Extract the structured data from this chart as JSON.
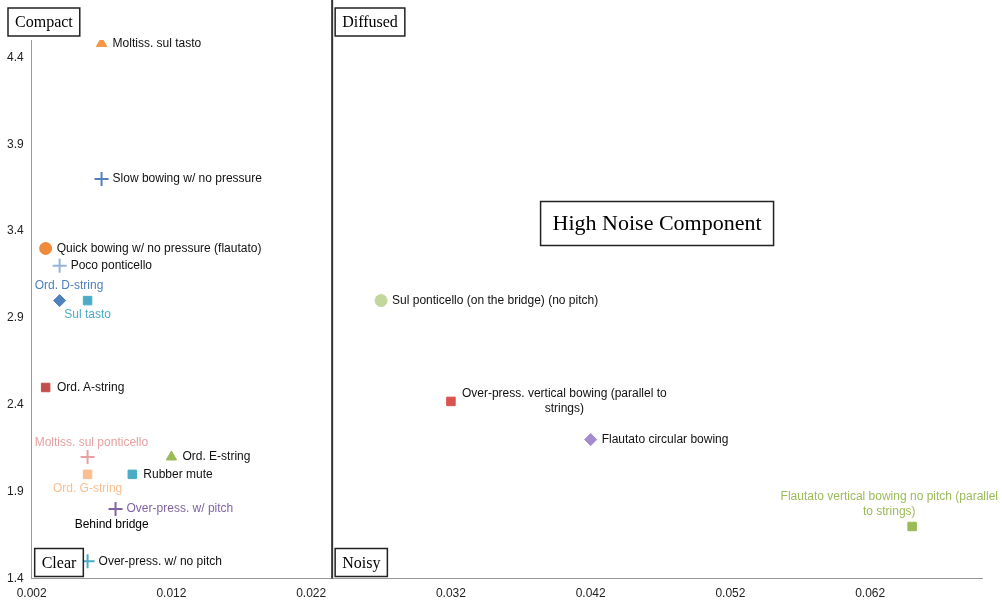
{
  "chart_data": {
    "type": "scatter",
    "xlim": [
      0.002,
      0.07
    ],
    "xticks": [
      0.002,
      0.012,
      0.022,
      0.032,
      0.042,
      0.052,
      0.062
    ],
    "ylim": [
      1.4,
      4.5
    ],
    "yticks": [
      1.4,
      1.9,
      2.4,
      2.9,
      3.4,
      3.9,
      4.4
    ],
    "grid": false,
    "legend": false,
    "ref_lines": [
      {
        "axis": "x",
        "value": 0.0235,
        "color": "#333333"
      }
    ],
    "annotations": [
      "Compact",
      "Diffused",
      "Clear",
      "Noisy",
      "High Noise Component",
      "Behind bridge"
    ],
    "series": [
      {
        "name": "Moltiss. sul tasto",
        "color": "#f79646",
        "marker": "triangle",
        "x": [
          0.007
        ],
        "values": [
          4.48
        ]
      },
      {
        "name": "Slow bowing w/ no pressure",
        "color": "#4f81bd",
        "marker": "cross",
        "x": [
          0.007
        ],
        "values": [
          3.7
        ]
      },
      {
        "name": "Quick bowing w/ no pressure (flautato)",
        "color": "#f08a3c",
        "marker": "circle",
        "x": [
          0.003
        ],
        "values": [
          3.3
        ]
      },
      {
        "name": "Poco ponticello",
        "color": "#95b3d7",
        "marker": "cross",
        "x": [
          0.004
        ],
        "values": [
          3.2
        ]
      },
      {
        "name": "Ord. D-string",
        "color": "#4f81bd",
        "marker": "diamond",
        "x": [
          0.004
        ],
        "values": [
          3.0
        ]
      },
      {
        "name": "Sul tasto",
        "color": "#4bacc6",
        "marker": "square",
        "x": [
          0.006
        ],
        "values": [
          3.0
        ]
      },
      {
        "name": "Ord. A-string",
        "color": "#c0504d",
        "marker": "square",
        "x": [
          0.003
        ],
        "values": [
          2.5
        ]
      },
      {
        "name": "Moltiss. sul ponticello",
        "color": "#e6a0a0",
        "marker": "cross",
        "x": [
          0.006
        ],
        "values": [
          2.1
        ]
      },
      {
        "name": "Ord. E-string",
        "color": "#9bbb59",
        "marker": "triangle",
        "x": [
          0.012
        ],
        "values": [
          2.1
        ]
      },
      {
        "name": "Ord. G-string",
        "color": "#fabf8f",
        "marker": "square",
        "x": [
          0.006
        ],
        "values": [
          2.0
        ]
      },
      {
        "name": "Rubber mute",
        "color": "#4bacc6",
        "marker": "square",
        "x": [
          0.0092
        ],
        "values": [
          2.0
        ]
      },
      {
        "name": "Over-press. w/ pitch",
        "color": "#8064a2",
        "marker": "cross",
        "x": [
          0.008
        ],
        "values": [
          1.8
        ]
      },
      {
        "name": "Over-press. w/ no pitch",
        "color": "#4bacc6",
        "marker": "cross",
        "x": [
          0.006
        ],
        "values": [
          1.5
        ]
      },
      {
        "name": "Sul ponticello (on the bridge) (no pitch)",
        "color": "#c3d69b",
        "marker": "circle",
        "x": [
          0.027
        ],
        "values": [
          3.0
        ]
      },
      {
        "name": "Over-press. vertical bowing (parallel to strings)",
        "color": "#d9534f",
        "marker": "square",
        "x": [
          0.032
        ],
        "values": [
          2.42
        ]
      },
      {
        "name": "Flautato circular bowing",
        "color": "#a48ad0",
        "marker": "diamond",
        "x": [
          0.042
        ],
        "values": [
          2.2
        ]
      },
      {
        "name": "Flautato vertical bowing no pitch (parallel to strings)",
        "color": "#9bbb59",
        "marker": "square",
        "x": [
          0.065
        ],
        "values": [
          1.7
        ]
      }
    ]
  }
}
